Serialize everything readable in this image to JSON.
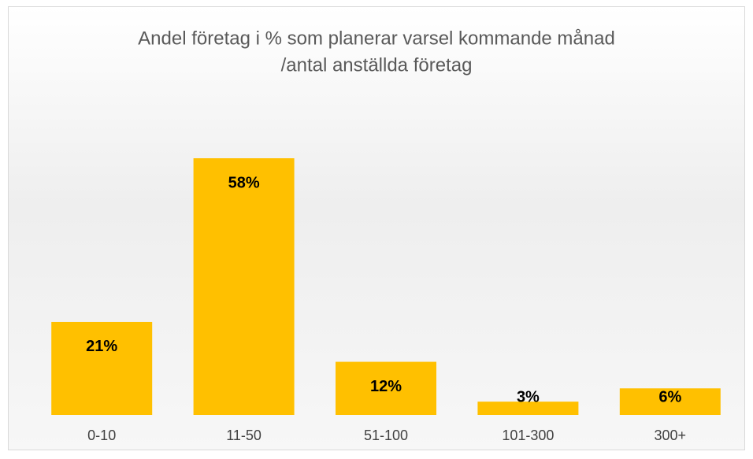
{
  "chart_data": {
    "type": "bar",
    "title": [
      "Andel företag i % som planerar varsel kommande månad",
      "/antal anställda företag"
    ],
    "categories": [
      "0-10",
      "11-50",
      "51-100",
      "101-300",
      "300+"
    ],
    "values": [
      21,
      58,
      12,
      3,
      6
    ],
    "value_labels": [
      "21%",
      "58%",
      "12%",
      "3%",
      "6%"
    ],
    "color": "#ffc000"
  }
}
